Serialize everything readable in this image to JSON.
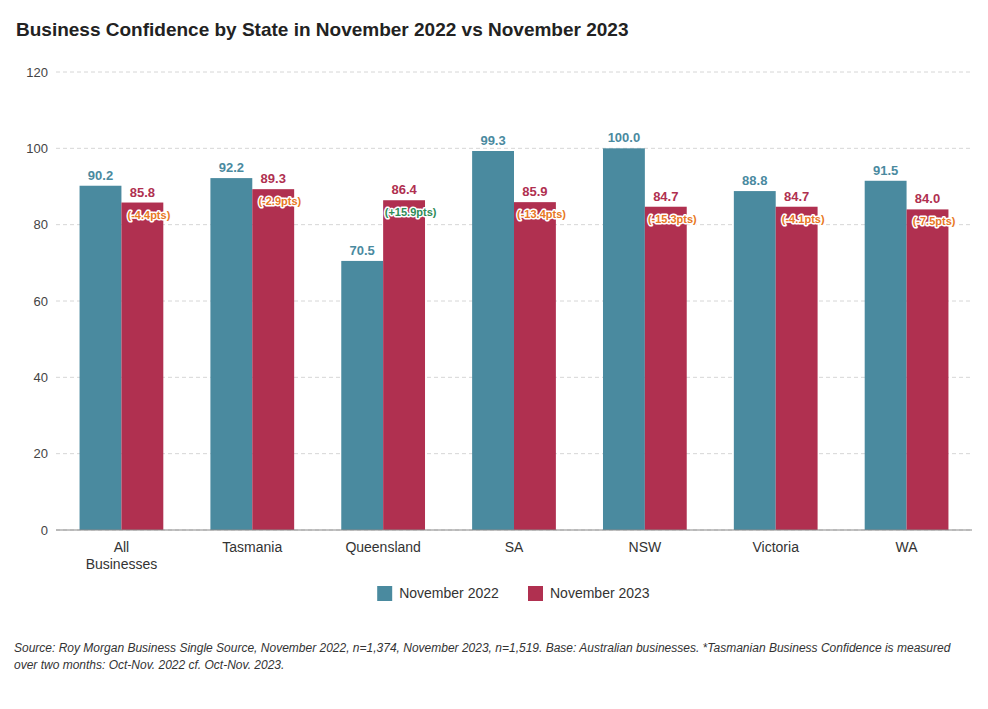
{
  "chart_data": {
    "type": "bar",
    "title": "Business Confidence by State in November 2022 vs November 2023",
    "categories": [
      "All\nBusinesses",
      "Tasmania",
      "Queensland",
      "SA",
      "NSW",
      "Victoria",
      "WA"
    ],
    "series": [
      {
        "name": "November 2022",
        "color": "#4A8A9F",
        "values": [
          90.2,
          92.2,
          70.5,
          99.3,
          100.0,
          88.8,
          91.5
        ],
        "value_labels": [
          "90.2",
          "92.2",
          "70.5",
          "99.3",
          "100.0",
          "88.8",
          "91.5"
        ]
      },
      {
        "name": "November 2023",
        "color": "#B03050",
        "values": [
          85.8,
          89.3,
          86.4,
          85.9,
          84.7,
          84.7,
          84.0
        ],
        "value_labels": [
          "85.8",
          "89.3",
          "86.4",
          "85.9",
          "84.7",
          "84.7",
          "84.0"
        ]
      }
    ],
    "annotations": [
      {
        "text": "(-4.4pts)",
        "color": "#E87722"
      },
      {
        "text": "(-2.9pts)",
        "color": "#E87722"
      },
      {
        "text": "(+15.9pts)",
        "color": "#2E8B57"
      },
      {
        "text": "(-13.4pts)",
        "color": "#E87722"
      },
      {
        "text": "(-15.3pts)",
        "color": "#E87722"
      },
      {
        "text": "(-4.1pts)",
        "color": "#E87722"
      },
      {
        "text": "(-7.5pts)",
        "color": "#E87722"
      }
    ],
    "source": "Source: Roy Morgan Business Single Source, November 2022, n=1,374, November 2023, n=1,519. Base: Australian businesses. *Tasmanian Business Confidence is measured over two months: Oct-Nov. 2022 cf. Oct-Nov. 2023.",
    "ylim": [
      0,
      120
    ],
    "yticks": [
      0,
      20,
      40,
      60,
      80,
      100,
      120
    ],
    "grid": true,
    "legend": "bottom",
    "data_labels": true
  }
}
